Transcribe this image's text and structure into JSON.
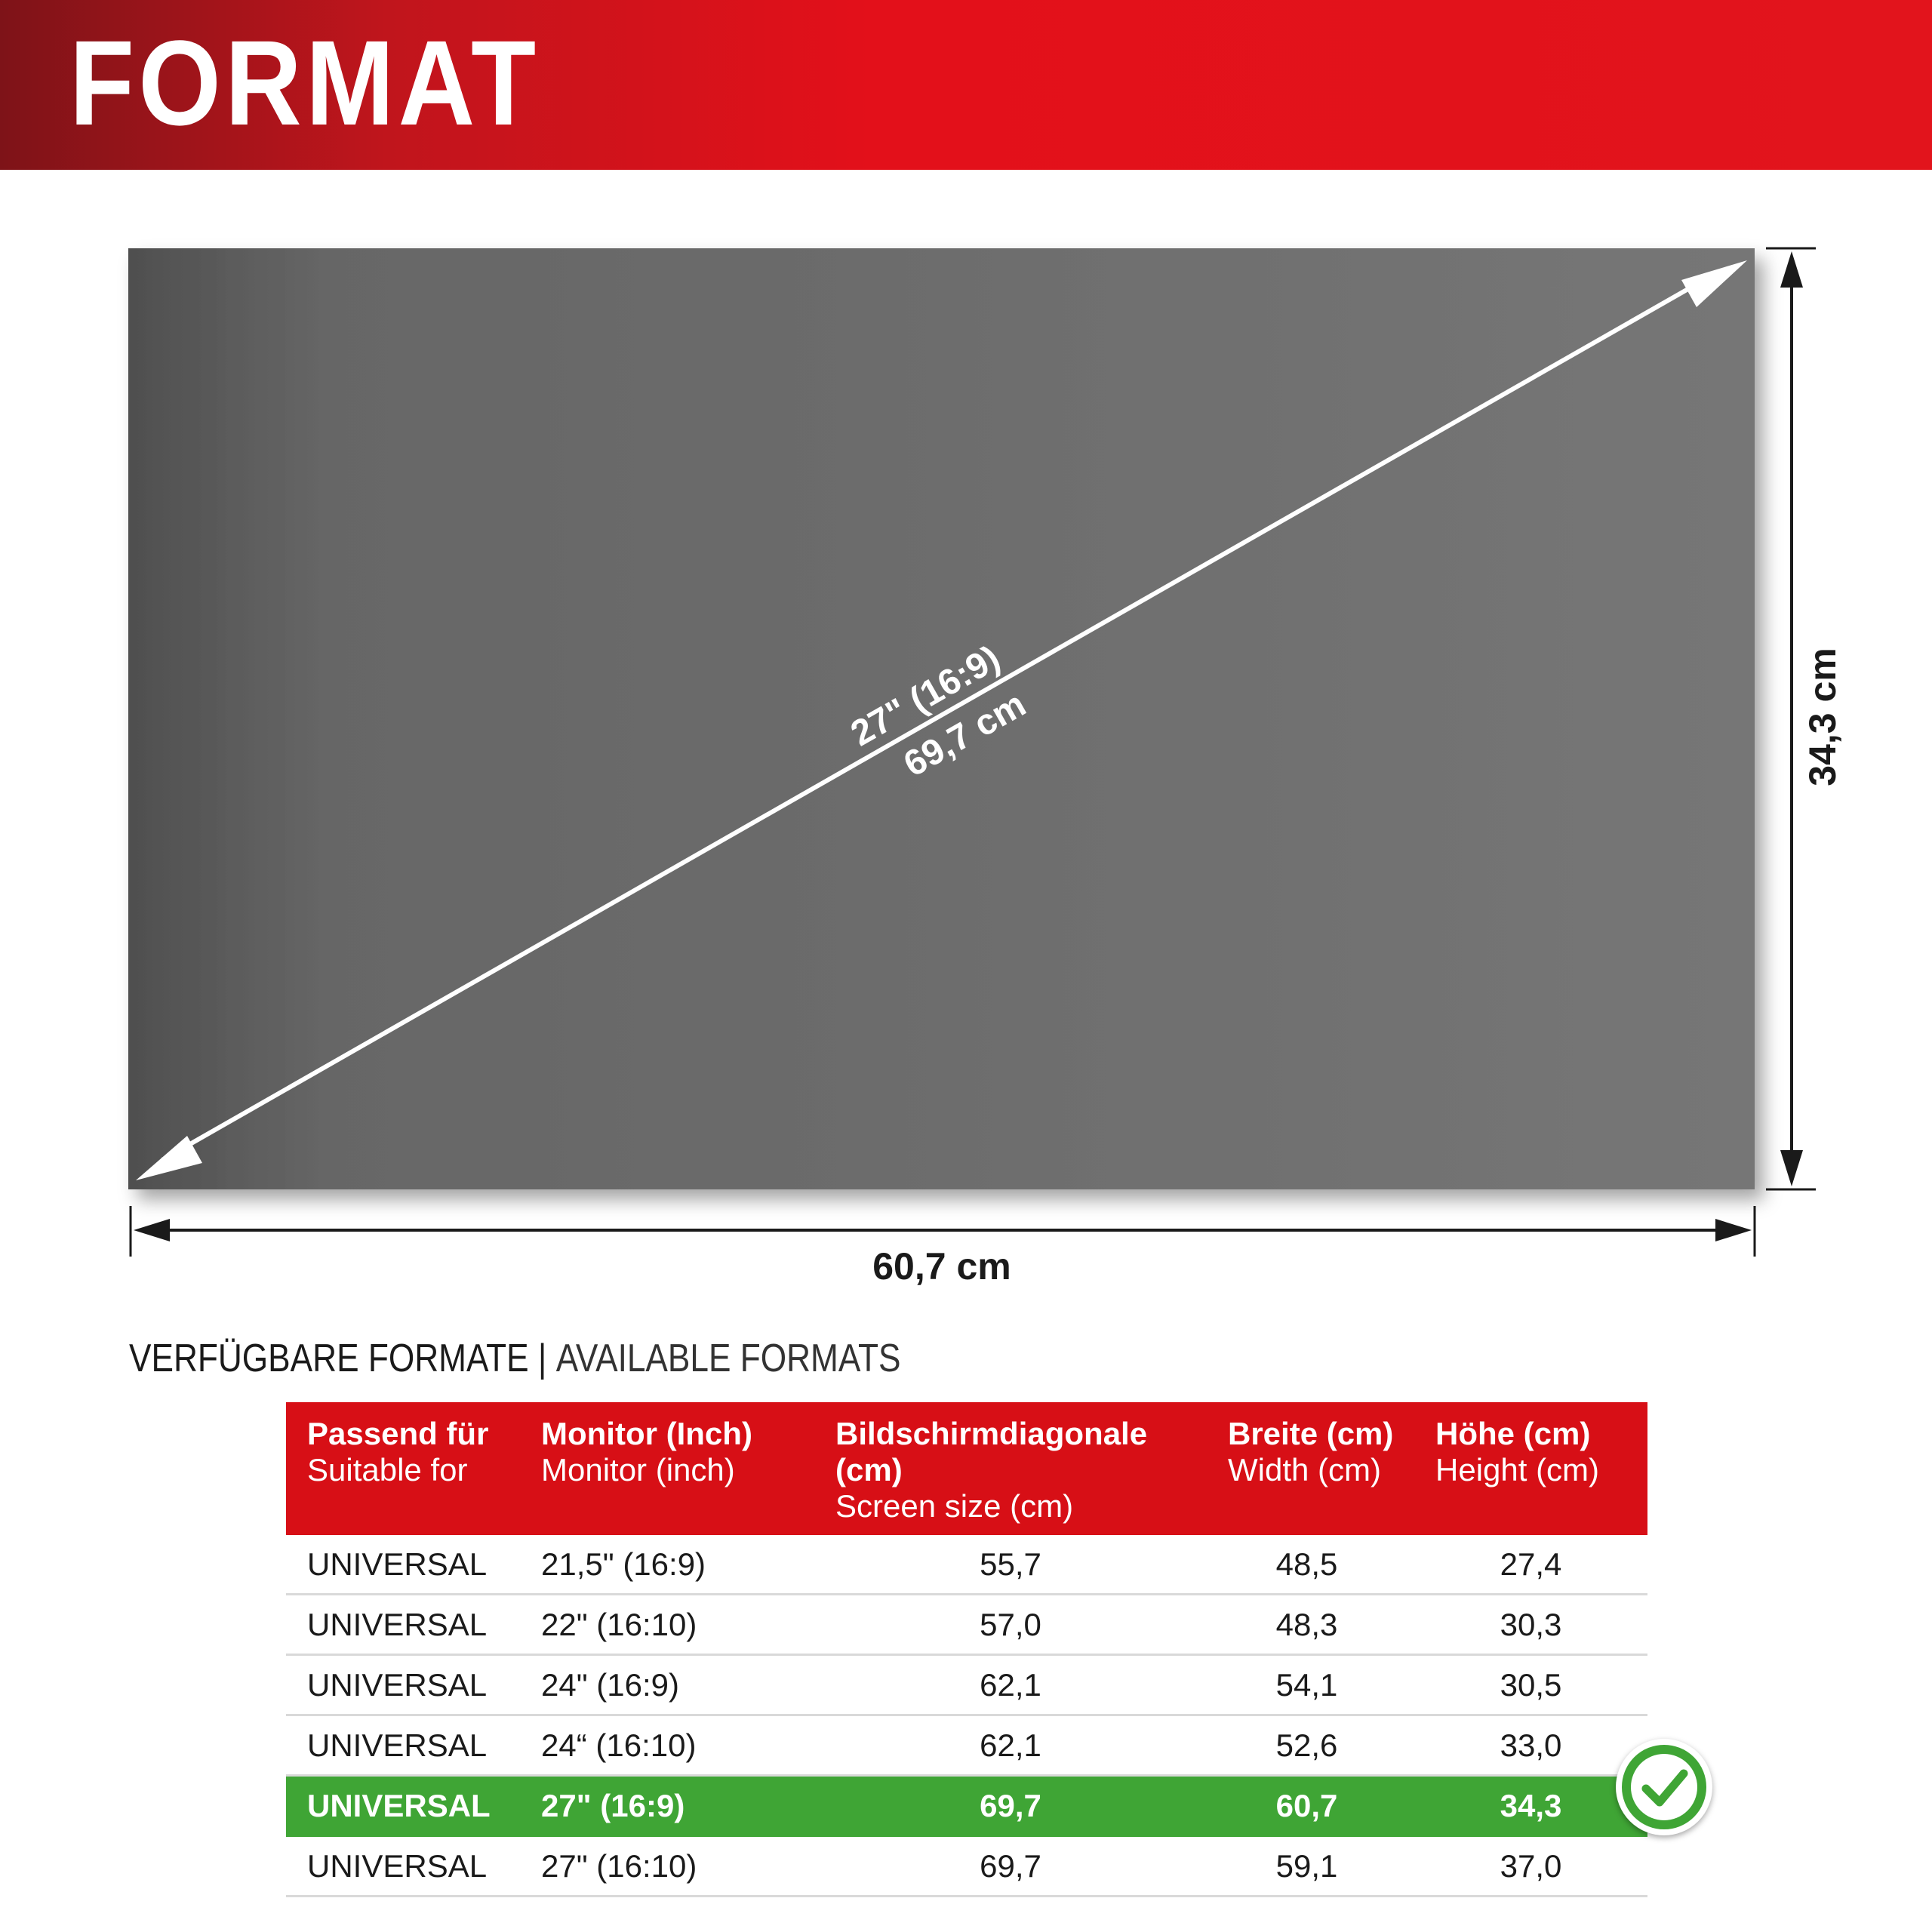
{
  "header": {
    "title": "FORMAT"
  },
  "figure": {
    "diagonal_inch": "27\" (16:9)",
    "diagonal_cm": "69,7 cm",
    "width_label": "60,7 cm",
    "height_label": "34,3 cm"
  },
  "section": {
    "title_de": "VERFÜGBARE FORMATE",
    "separator": "|",
    "title_en": "AVAILABLE FORMATS"
  },
  "table": {
    "headers": [
      {
        "de": "Passend für",
        "en": "Suitable for"
      },
      {
        "de": "Monitor (Inch)",
        "en": "Monitor (inch)"
      },
      {
        "de": "Bildschirmdiagonale (cm)",
        "en": "Screen size (cm)"
      },
      {
        "de": "Breite (cm)",
        "en": "Width (cm)"
      },
      {
        "de": "Höhe (cm)",
        "en": "Height (cm)"
      }
    ],
    "rows": [
      [
        "UNIVERSAL",
        "21,5\" (16:9)",
        "55,7",
        "48,5",
        "27,4"
      ],
      [
        "UNIVERSAL",
        "22\" (16:10)",
        "57,0",
        "48,3",
        "30,3"
      ],
      [
        "UNIVERSAL",
        "24\" (16:9)",
        "62,1",
        "54,1",
        "30,5"
      ],
      [
        "UNIVERSAL",
        "24“ (16:10)",
        "62,1",
        "52,6",
        "33,0"
      ],
      [
        "UNIVERSAL",
        "27\" (16:9)",
        "69,7",
        "60,7",
        "34,3"
      ],
      [
        "UNIVERSAL",
        "27\" (16:10)",
        "69,7",
        "59,1",
        "37,0"
      ]
    ],
    "selected_row": 4,
    "selected_icon": "checkmark-circle-icon"
  },
  "colors": {
    "brand_red": "#e3101a",
    "selected_green": "#3fa535",
    "screen_gray": "#6e6e6e"
  }
}
